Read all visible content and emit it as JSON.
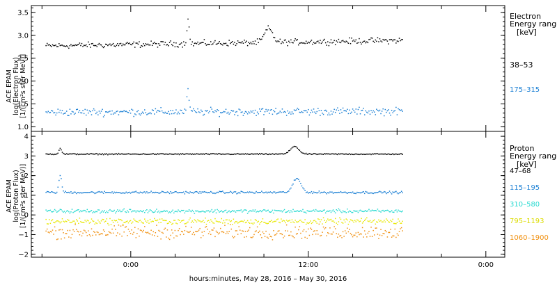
{
  "chart_data": [
    {
      "type": "scatter",
      "instrument_label": "ACE EPAM",
      "ylabel_line1": "log(Electron Flux)",
      "ylabel_line2": "[1/(cm²s ster MeV)]",
      "ylim": [
        0.9,
        3.65
      ],
      "yticks": [
        "1.0",
        "1.5",
        "2.0",
        "2.5",
        "3.0",
        "3.5"
      ],
      "legend_title_line1": "Electron",
      "legend_title_line2": "Energy ranges",
      "legend_units": "[keV]",
      "series": [
        {
          "name": "38–53",
          "color": "#000000",
          "base": 2.78,
          "trend": 0.12,
          "noise": 0.055,
          "start": 0.03,
          "features": [
            {
              "x": 0.5,
              "width": 0.012,
              "amp": 0.3
            },
            {
              "x": 0.33,
              "width": 0.003,
              "amp": 0.6
            }
          ]
        },
        {
          "name": "175–315",
          "color": "#1a7fd4",
          "base": 1.33,
          "trend": 0.02,
          "noise": 0.07,
          "start": 0.03,
          "features": [
            {
              "x": 0.33,
              "width": 0.003,
              "amp": 0.5
            }
          ]
        }
      ]
    },
    {
      "type": "scatter",
      "instrument_label": "ACE EPAM",
      "ylabel_line1": "log(Proton Flux)",
      "ylabel_line2": "[1/(cm²s ster MeV)]",
      "ylim": [
        -2.15,
        4.25
      ],
      "yticks": [
        "−2",
        "−1",
        "0",
        "1",
        "2",
        "3",
        "4"
      ],
      "legend_title_line1": "Proton",
      "legend_title_line2": "Energy ranges",
      "legend_units": "[keV]",
      "series": [
        {
          "name": "47–68",
          "color": "#000000",
          "base": 3.12,
          "trend": 0.0,
          "noise": 0.025,
          "start": 0.03,
          "features": [
            {
              "x": 0.555,
              "width": 0.012,
              "amp": 0.4
            },
            {
              "x": 0.06,
              "width": 0.004,
              "amp": 0.3
            }
          ]
        },
        {
          "name": "115–195",
          "color": "#1a7fd4",
          "base": 1.17,
          "trend": 0.0,
          "noise": 0.05,
          "start": 0.03,
          "features": [
            {
              "x": 0.56,
              "width": 0.012,
              "amp": 0.7
            },
            {
              "x": 0.06,
              "width": 0.004,
              "amp": 0.9
            }
          ]
        },
        {
          "name": "310–580",
          "color": "#26d9d0",
          "base": 0.22,
          "trend": 0.0,
          "noise": 0.08,
          "start": 0.03,
          "features": []
        },
        {
          "name": "795–1193",
          "color": "#e8e800",
          "base": -0.3,
          "trend": 0.0,
          "noise": 0.13,
          "start": 0.03,
          "features": []
        },
        {
          "name": "1060–1900",
          "color": "#f09010",
          "base": -0.85,
          "trend": 0.0,
          "noise": 0.28,
          "start": 0.03,
          "features": []
        }
      ]
    }
  ],
  "x_axis": {
    "tick_labels": [
      "0:00",
      "12:00",
      "0:00"
    ],
    "title": "hours:minutes, May 28, 2016 – May 30, 2016"
  }
}
